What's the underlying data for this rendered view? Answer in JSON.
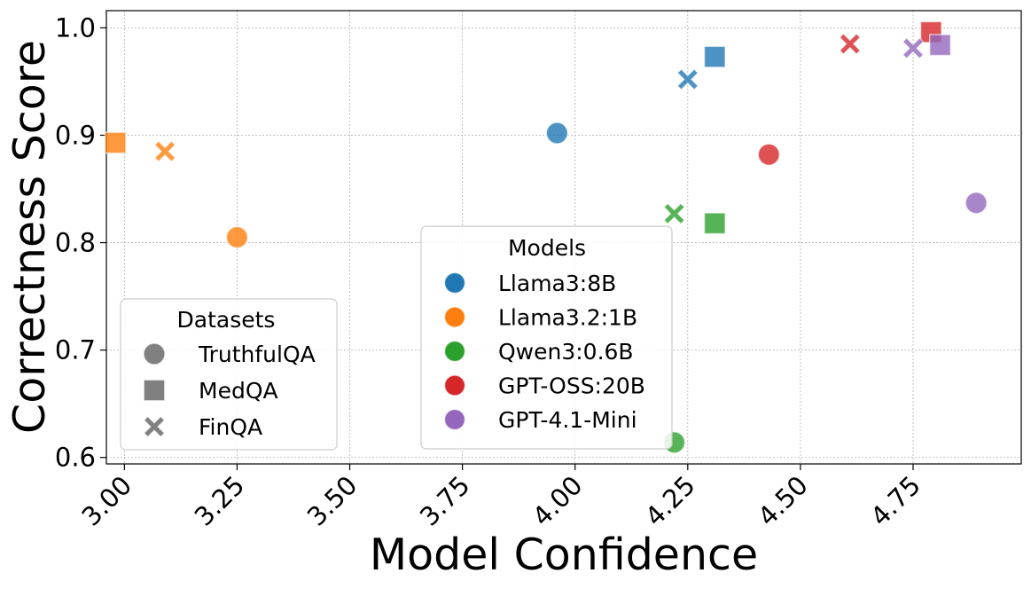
{
  "chart_data": {
    "type": "scatter",
    "title": "",
    "xlabel": "Model Confidence",
    "ylabel": "Correctness Score",
    "xlim": [
      2.96,
      4.99
    ],
    "ylim": [
      0.594,
      1.016
    ],
    "xticks": [
      "3.00",
      "3.25",
      "3.50",
      "3.75",
      "4.00",
      "4.25",
      "4.50",
      "4.75"
    ],
    "yticks": [
      "0.6",
      "0.7",
      "0.8",
      "0.9",
      "1.0"
    ],
    "grid": true,
    "models_legend": {
      "title": "Models",
      "placement": "lower-center",
      "entries": [
        {
          "name": "Llama3:8B",
          "color": "#1f77b4"
        },
        {
          "name": "Llama3.2:1B",
          "color": "#ff7f0e"
        },
        {
          "name": "Qwen3:0.6B",
          "color": "#2ca02c"
        },
        {
          "name": "GPT-OSS:20B",
          "color": "#d62728"
        },
        {
          "name": "GPT-4.1-Mini",
          "color": "#9467bd"
        }
      ]
    },
    "datasets_legend": {
      "title": "Datasets",
      "placement": "lower-left",
      "entries": [
        {
          "name": "TruthfulQA",
          "marker": "circle"
        },
        {
          "name": "MedQA",
          "marker": "square"
        },
        {
          "name": "FinQA",
          "marker": "x"
        }
      ]
    },
    "points": [
      {
        "model": "Llama3:8B",
        "dataset": "TruthfulQA",
        "x": 3.96,
        "y": 0.902
      },
      {
        "model": "Llama3:8B",
        "dataset": "MedQA",
        "x": 4.31,
        "y": 0.973
      },
      {
        "model": "Llama3:8B",
        "dataset": "FinQA",
        "x": 4.25,
        "y": 0.952
      },
      {
        "model": "Llama3.2:1B",
        "dataset": "TruthfulQA",
        "x": 3.25,
        "y": 0.805
      },
      {
        "model": "Llama3.2:1B",
        "dataset": "MedQA",
        "x": 2.98,
        "y": 0.893
      },
      {
        "model": "Llama3.2:1B",
        "dataset": "FinQA",
        "x": 3.09,
        "y": 0.885
      },
      {
        "model": "Qwen3:0.6B",
        "dataset": "TruthfulQA",
        "x": 4.22,
        "y": 0.614
      },
      {
        "model": "Qwen3:0.6B",
        "dataset": "MedQA",
        "x": 4.31,
        "y": 0.818
      },
      {
        "model": "Qwen3:0.6B",
        "dataset": "FinQA",
        "x": 4.22,
        "y": 0.827
      },
      {
        "model": "GPT-OSS:20B",
        "dataset": "TruthfulQA",
        "x": 4.43,
        "y": 0.882
      },
      {
        "model": "GPT-OSS:20B",
        "dataset": "MedQA",
        "x": 4.79,
        "y": 0.996
      },
      {
        "model": "GPT-OSS:20B",
        "dataset": "FinQA",
        "x": 4.61,
        "y": 0.985
      },
      {
        "model": "GPT-4.1-Mini",
        "dataset": "TruthfulQA",
        "x": 4.89,
        "y": 0.837
      },
      {
        "model": "GPT-4.1-Mini",
        "dataset": "MedQA",
        "x": 4.81,
        "y": 0.984
      },
      {
        "model": "GPT-4.1-Mini",
        "dataset": "FinQA",
        "x": 4.75,
        "y": 0.981
      }
    ]
  }
}
